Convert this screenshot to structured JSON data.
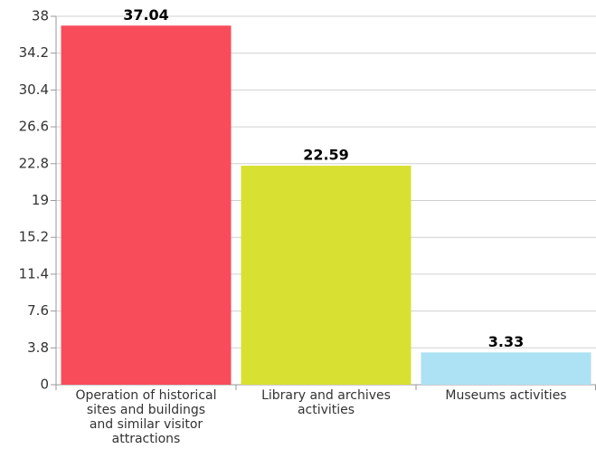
{
  "chart_data": {
    "type": "bar",
    "categories": [
      "Operation of historical sites and buildings and similar visitor attractions",
      "Library and archives activities",
      "Museums activities"
    ],
    "values": [
      37.04,
      22.59,
      3.33
    ],
    "colors": [
      "#f94c5b",
      "#d8e032",
      "#ace2f3"
    ],
    "ylim": [
      0,
      38
    ],
    "yticks": [
      0,
      3.8,
      7.6,
      11.4,
      15.2,
      19,
      22.8,
      26.6,
      30.4,
      34.2,
      38
    ],
    "grid": true
  }
}
